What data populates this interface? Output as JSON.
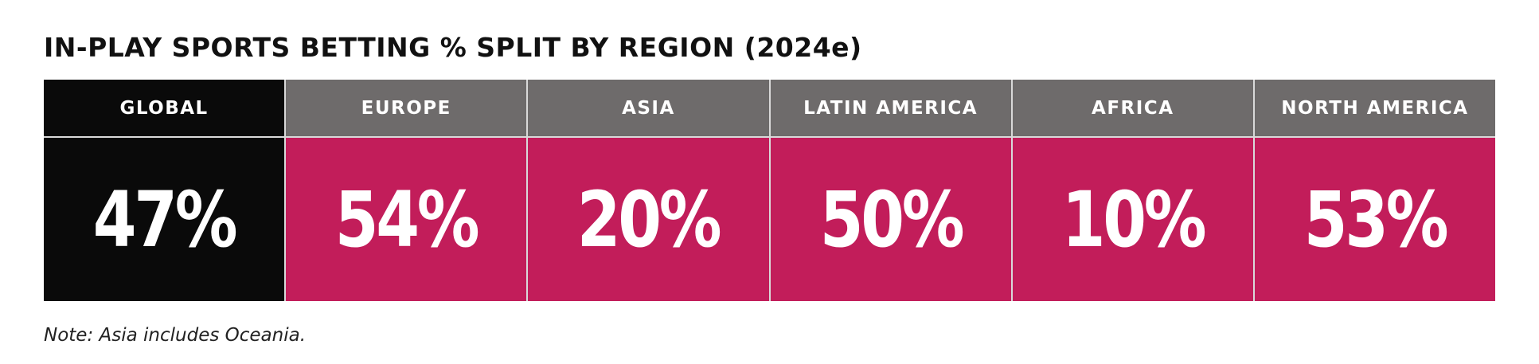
{
  "title": "IN-PLAY SPORTS BETTING % SPLIT BY REGION (2024e)",
  "note": "Note: Asia includes Oceania.",
  "colors": {
    "global_header": "#0a0a0a",
    "global_value": "#0a0a0a",
    "region_header": "#6e6b6b",
    "region_value": "#c21d5a"
  },
  "chart_data": {
    "type": "table",
    "title": "IN-PLAY SPORTS BETTING % SPLIT BY REGION (2024e)",
    "categories": [
      "GLOBAL",
      "EUROPE",
      "ASIA",
      "LATIN AMERICA",
      "AFRICA",
      "NORTH AMERICA"
    ],
    "values": [
      47,
      54,
      20,
      50,
      10,
      53
    ],
    "labels": [
      "47%",
      "54%",
      "20%",
      "50%",
      "10%",
      "53%"
    ],
    "unit": "%"
  }
}
